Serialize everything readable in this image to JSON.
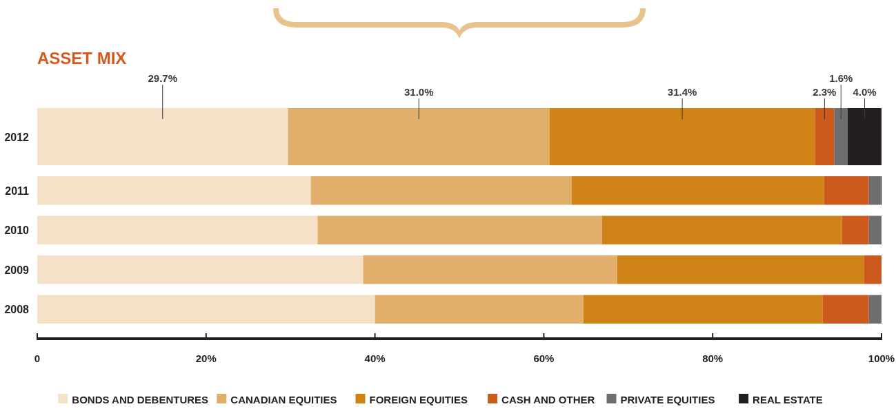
{
  "chart_data": {
    "type": "bar",
    "title": "ASSET MIX",
    "orientation": "horizontal",
    "stacked": true,
    "categories": [
      "2012",
      "2011",
      "2010",
      "2009",
      "2008"
    ],
    "series": [
      {
        "name": "BONDS AND DEBENTURES",
        "color": "#f5e1c8",
        "values": [
          29.7,
          32.4,
          33.2,
          38.6,
          40.0
        ],
        "value_labels": [
          "29.7%",
          null,
          null,
          null,
          null
        ]
      },
      {
        "name": "CANADIAN EQUITIES",
        "color": "#e2ae6c",
        "values": [
          31.0,
          30.9,
          33.7,
          30.1,
          24.7
        ],
        "value_labels": [
          "31.0%",
          null,
          null,
          null,
          null
        ]
      },
      {
        "name": "FOREIGN EQUITIES",
        "color": "#cf8317",
        "values": [
          31.4,
          29.9,
          28.4,
          29.2,
          28.3
        ],
        "value_labels": [
          "31.4%",
          null,
          null,
          null,
          null
        ]
      },
      {
        "name": "CASH AND OTHER",
        "color": "#cc5a1c",
        "values": [
          2.3,
          5.3,
          3.2,
          2.1,
          5.5
        ],
        "value_labels": [
          "2.3%",
          null,
          null,
          null,
          null
        ]
      },
      {
        "name": "PRIVATE EQUITIES",
        "color": "#6d6e70",
        "values": [
          1.6,
          1.4,
          1.5,
          0,
          1.5
        ],
        "value_labels": [
          "1.6%",
          null,
          null,
          null,
          null
        ]
      },
      {
        "name": "REAL ESTATE",
        "color": "#231f20",
        "values": [
          4.0,
          0.1,
          0,
          0,
          0
        ],
        "value_labels": [
          "4.0%",
          null,
          null,
          null,
          null
        ]
      }
    ],
    "xlim": [
      0,
      100
    ],
    "xticks": [
      0,
      {
        "value": 20,
        "label": "20%"
      },
      {
        "value": 40,
        "label": "40%"
      },
      {
        "value": 60,
        "label": "60%"
      },
      {
        "value": 80,
        "label": "80%"
      },
      {
        "value": 100,
        "label": "100%"
      }
    ],
    "legend": "bottom",
    "grid": false
  }
}
